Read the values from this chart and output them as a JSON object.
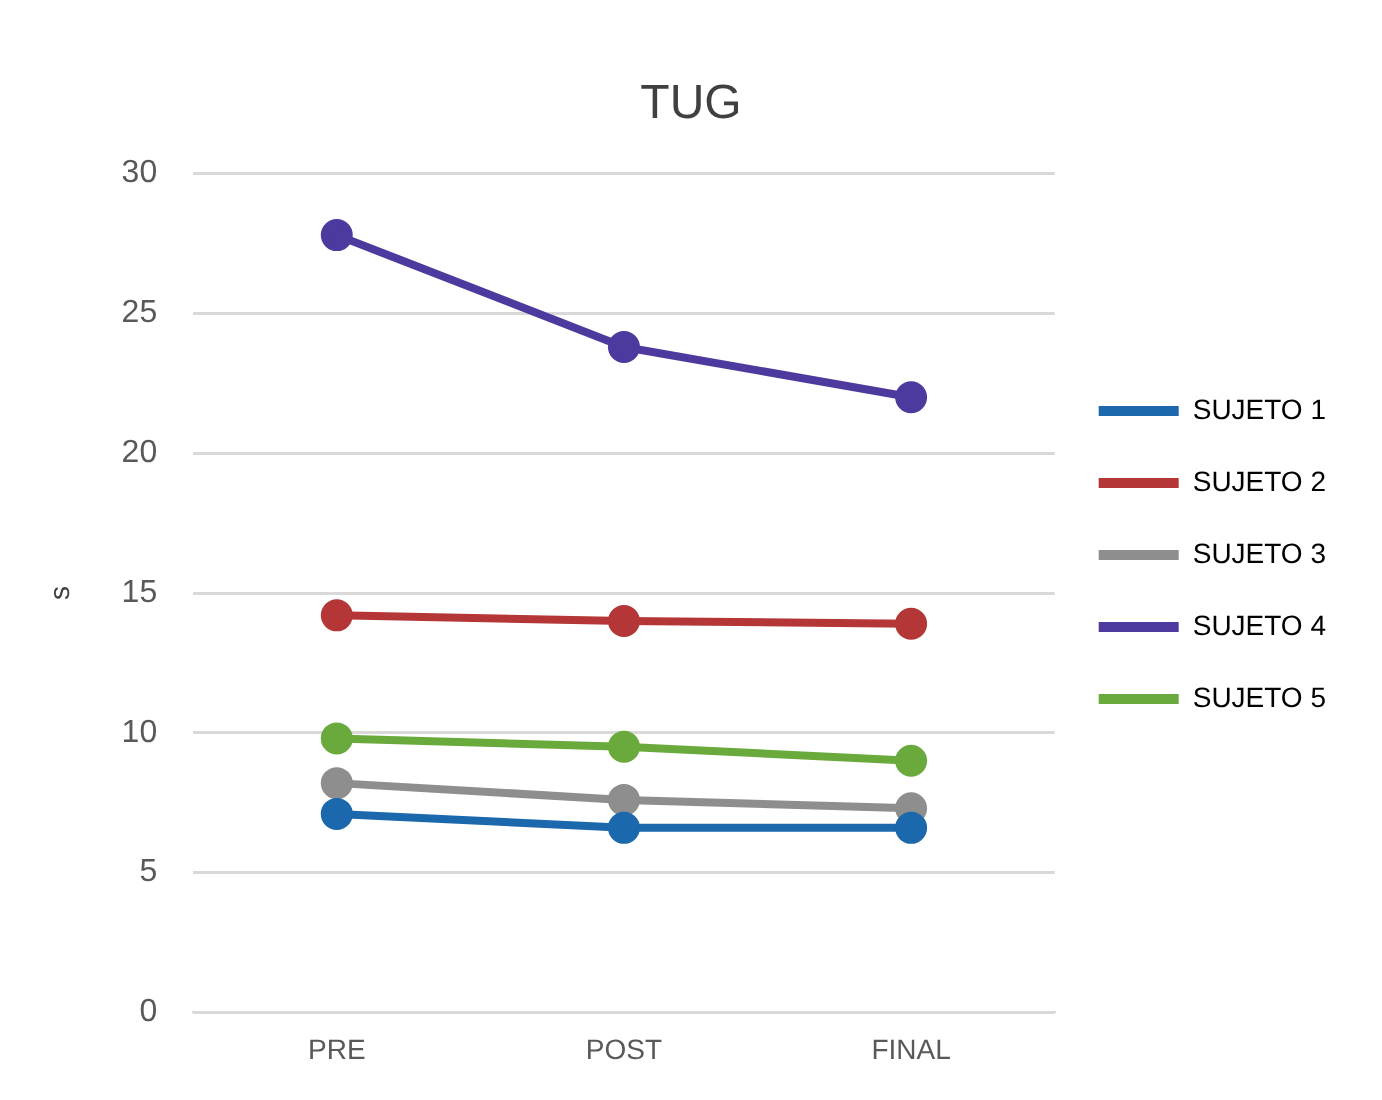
{
  "chart_data": {
    "type": "line",
    "title": "TUG",
    "ylabel": "s",
    "categories": [
      "PRE",
      "POST",
      "FINAL"
    ],
    "series": [
      {
        "name": "SUJETO 1",
        "color": "#1b68ad",
        "values": [
          7.1,
          6.6,
          6.6
        ]
      },
      {
        "name": "SUJETO 2",
        "color": "#b53636",
        "values": [
          14.2,
          14.0,
          13.9
        ]
      },
      {
        "name": "SUJETO 3",
        "color": "#8e8e8e",
        "values": [
          8.2,
          7.6,
          7.3
        ]
      },
      {
        "name": "SUJETO 4",
        "color": "#4e3a9e",
        "values": [
          27.8,
          23.8,
          22.0
        ]
      },
      {
        "name": "SUJETO 5",
        "color": "#6aaa3c",
        "values": [
          9.8,
          9.5,
          9.0
        ]
      }
    ],
    "ylim": [
      0,
      30
    ],
    "yticks": [
      0,
      5,
      10,
      15,
      20,
      25,
      30
    ],
    "grid": "y",
    "legend": "right",
    "marker": "circle",
    "line_style": "solid"
  }
}
